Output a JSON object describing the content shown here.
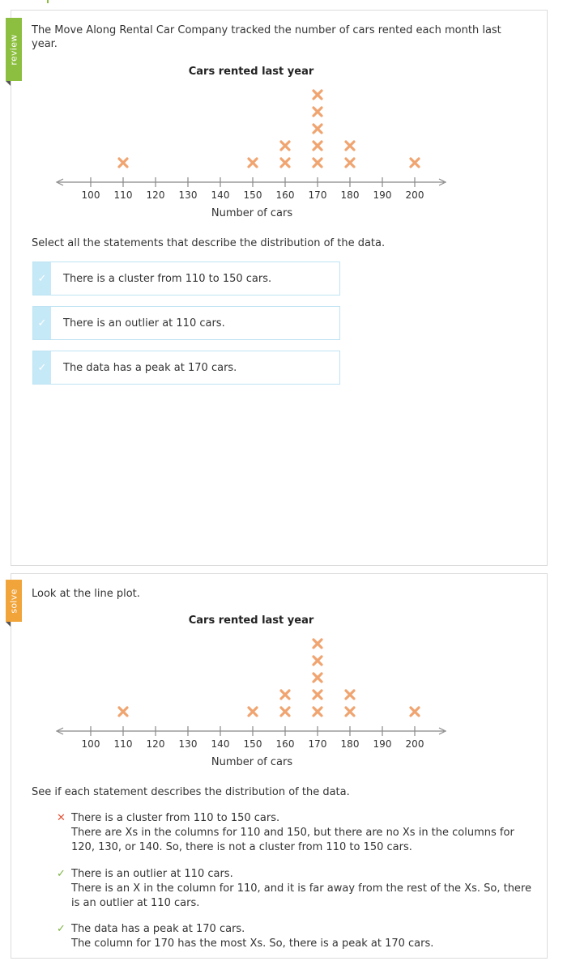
{
  "review": {
    "tab_label": "review",
    "prompt": "The Move Along Rental Car Company tracked the number of cars rented each month last year.",
    "instruction": "Select all the statements that describe the distribution of the data.",
    "choices": [
      {
        "label": "There is a cluster from 110 to 150 cars.",
        "selected": true
      },
      {
        "label": "There is an outlier at 110 cars.",
        "selected": true
      },
      {
        "label": "The data has a peak at 170 cars.",
        "selected": true
      }
    ],
    "check_glyph": "✓"
  },
  "solve": {
    "tab_label": "solve",
    "prompt": "Look at the line plot.",
    "instruction": "See if each statement describes the distribution of the data.",
    "explanations": [
      {
        "status": "wrong",
        "mark": "✕",
        "statement": "There is a cluster from 110 to 150 cars.",
        "reason": "There are Xs in the columns for 110 and 150, but there are no Xs in the columns for 120, 130, or 140. So, there is not a cluster from 110 to 150 cars."
      },
      {
        "status": "right",
        "mark": "✓",
        "statement": "There is an outlier at 110 cars.",
        "reason": "There is an X in the column for 110, and it is far away from the rest of the Xs. So, there is an outlier at 110 cars."
      },
      {
        "status": "right",
        "mark": "✓",
        "statement": "The data has a peak at 170 cars.",
        "reason": "The column for 170 has the most Xs. So, there is a peak at 170 cars."
      }
    ]
  },
  "colors": {
    "x_mark": "#f0a470",
    "axis": "#888888",
    "review_tab": "#8cbf3f",
    "solve_tab": "#f0a43a",
    "choice_check_bg": "#c6e9f7"
  },
  "chart_data": [
    {
      "type": "line-plot",
      "title": "Cars rented last year",
      "xlabel": "Number of cars",
      "ticks": [
        100,
        110,
        120,
        130,
        140,
        150,
        160,
        170,
        180,
        190,
        200
      ],
      "xlim": [
        100,
        200
      ],
      "x": [
        110,
        150,
        160,
        170,
        180,
        200
      ],
      "counts": [
        1,
        1,
        2,
        5,
        2,
        1
      ]
    },
    {
      "type": "line-plot",
      "title": "Cars rented last year",
      "xlabel": "Number of cars",
      "ticks": [
        100,
        110,
        120,
        130,
        140,
        150,
        160,
        170,
        180,
        190,
        200
      ],
      "xlim": [
        100,
        200
      ],
      "x": [
        110,
        150,
        160,
        170,
        180,
        200
      ],
      "counts": [
        1,
        1,
        2,
        5,
        2,
        1
      ]
    }
  ]
}
